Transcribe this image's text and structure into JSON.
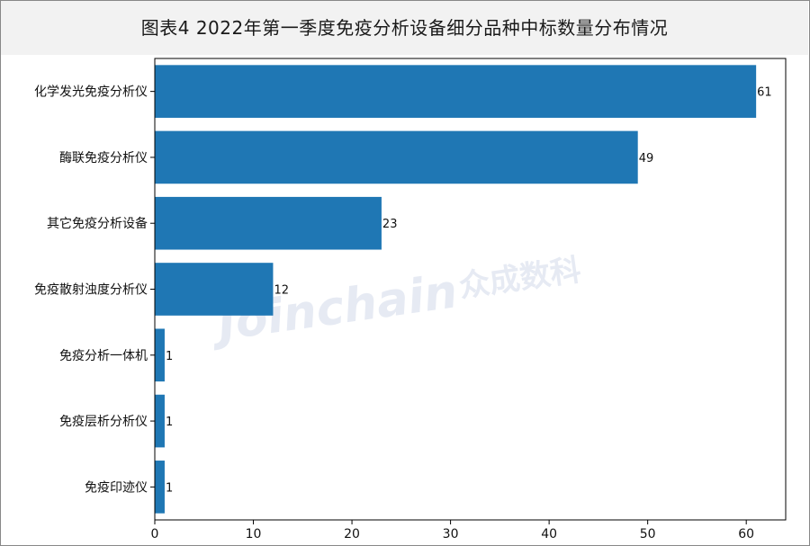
{
  "title": "图表4  2022年第一季度免疫分析设备细分品种中标数量分布情况",
  "watermark": {
    "brand": "Joinchain",
    "brand_cn": "众成数科"
  },
  "colors": {
    "bar": "#1f77b4",
    "title_bg": "#f2f2f2"
  },
  "chart_data": {
    "type": "bar",
    "orientation": "horizontal",
    "categories": [
      "化学发光免疫分析仪",
      "酶联免疫分析仪",
      "其它免疫分析设备",
      "免疫散射浊度分析仪",
      "免疫分析一体机",
      "免疫层析分析仪",
      "免疫印迹仪"
    ],
    "values": [
      61,
      49,
      23,
      12,
      1,
      1,
      1
    ],
    "xlim": [
      0,
      64
    ],
    "xticks": [
      0,
      10,
      20,
      30,
      40,
      50,
      60
    ],
    "xlabel": "",
    "ylabel": "",
    "grid": false,
    "data_labels": true
  }
}
